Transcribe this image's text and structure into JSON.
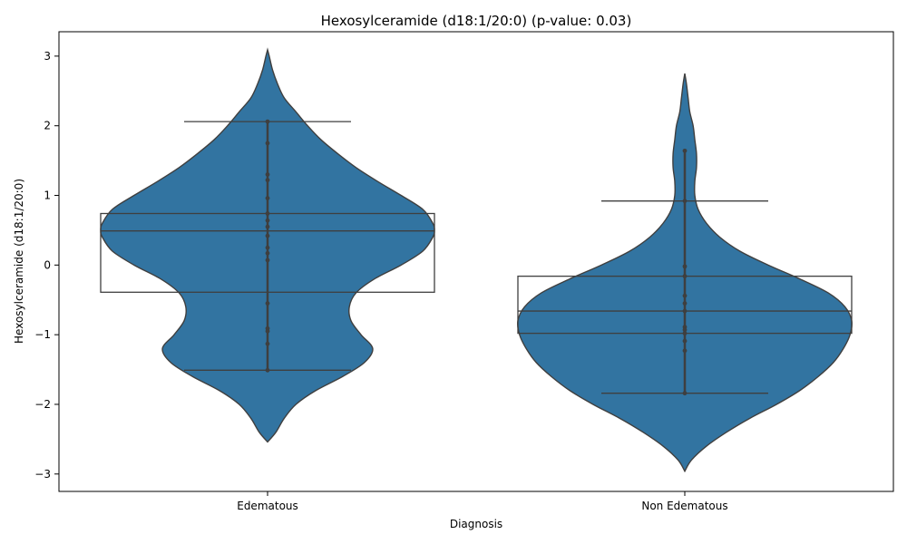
{
  "chart_data": {
    "type": "violin",
    "title": "Hexosylceramide (d18:1/20:0) (p-value: 0.03)",
    "xlabel": "Diagnosis",
    "ylabel": "Hexosylceramide (d18:1/20:0)",
    "ylim": [
      -3.25,
      3.35
    ],
    "yticks": [
      -3,
      -2,
      -1,
      0,
      1,
      2,
      3
    ],
    "grid": false,
    "colors": {
      "violin_fill": "#3274a1",
      "line": "#3f3f3f",
      "point": "#3f3f3f"
    },
    "categories": [
      "Edematous",
      "Non Edematous"
    ],
    "groups": [
      {
        "name": "Edematous",
        "box": {
          "whisker_low": -1.51,
          "q1": -0.39,
          "median": 0.49,
          "q3": 0.74,
          "whisker_high": 2.06
        },
        "points": [
          2.06,
          1.75,
          1.3,
          1.22,
          0.96,
          0.74,
          0.64,
          0.55,
          0.42,
          0.25,
          0.17,
          0.07,
          -0.55,
          -0.91,
          -0.95,
          -1.13,
          -1.51
        ],
        "density": [
          [
            -2.54,
            0.0
          ],
          [
            -2.4,
            0.05
          ],
          [
            -2.2,
            0.1
          ],
          [
            -2.0,
            0.17
          ],
          [
            -1.8,
            0.29
          ],
          [
            -1.6,
            0.45
          ],
          [
            -1.4,
            0.58
          ],
          [
            -1.2,
            0.63
          ],
          [
            -1.0,
            0.56
          ],
          [
            -0.8,
            0.5
          ],
          [
            -0.6,
            0.49
          ],
          [
            -0.4,
            0.53
          ],
          [
            -0.2,
            0.64
          ],
          [
            0.0,
            0.8
          ],
          [
            0.2,
            0.93
          ],
          [
            0.4,
            0.99
          ],
          [
            0.5,
            1.0
          ],
          [
            0.6,
            0.99
          ],
          [
            0.8,
            0.93
          ],
          [
            1.0,
            0.8
          ],
          [
            1.2,
            0.66
          ],
          [
            1.4,
            0.53
          ],
          [
            1.6,
            0.42
          ],
          [
            1.8,
            0.32
          ],
          [
            2.0,
            0.24
          ],
          [
            2.2,
            0.17
          ],
          [
            2.4,
            0.1
          ],
          [
            2.6,
            0.06
          ],
          [
            2.8,
            0.03
          ],
          [
            3.0,
            0.01
          ],
          [
            3.09,
            0.0
          ]
        ]
      },
      {
        "name": "Non Edematous",
        "box": {
          "whisker_low": -1.84,
          "q1": -0.98,
          "median": -0.66,
          "q3": -0.16,
          "whisker_high": 0.92
        },
        "points": [
          1.64,
          0.92,
          -0.02,
          -0.16,
          -0.44,
          -0.55,
          -0.66,
          -0.89,
          -0.93,
          -0.98,
          -1.09,
          -1.23,
          -1.84
        ],
        "density": [
          [
            -2.96,
            0.0
          ],
          [
            -2.8,
            0.04
          ],
          [
            -2.6,
            0.13
          ],
          [
            -2.4,
            0.25
          ],
          [
            -2.2,
            0.39
          ],
          [
            -2.0,
            0.55
          ],
          [
            -1.8,
            0.69
          ],
          [
            -1.6,
            0.8
          ],
          [
            -1.4,
            0.89
          ],
          [
            -1.2,
            0.95
          ],
          [
            -1.0,
            0.99
          ],
          [
            -0.8,
            1.0
          ],
          [
            -0.6,
            0.96
          ],
          [
            -0.4,
            0.86
          ],
          [
            -0.2,
            0.69
          ],
          [
            0.0,
            0.5
          ],
          [
            0.2,
            0.33
          ],
          [
            0.4,
            0.21
          ],
          [
            0.6,
            0.13
          ],
          [
            0.8,
            0.08
          ],
          [
            1.0,
            0.06
          ],
          [
            1.2,
            0.06
          ],
          [
            1.4,
            0.07
          ],
          [
            1.6,
            0.07
          ],
          [
            1.8,
            0.06
          ],
          [
            2.0,
            0.05
          ],
          [
            2.2,
            0.03
          ],
          [
            2.4,
            0.02
          ],
          [
            2.6,
            0.01
          ],
          [
            2.75,
            0.0
          ]
        ]
      }
    ]
  }
}
